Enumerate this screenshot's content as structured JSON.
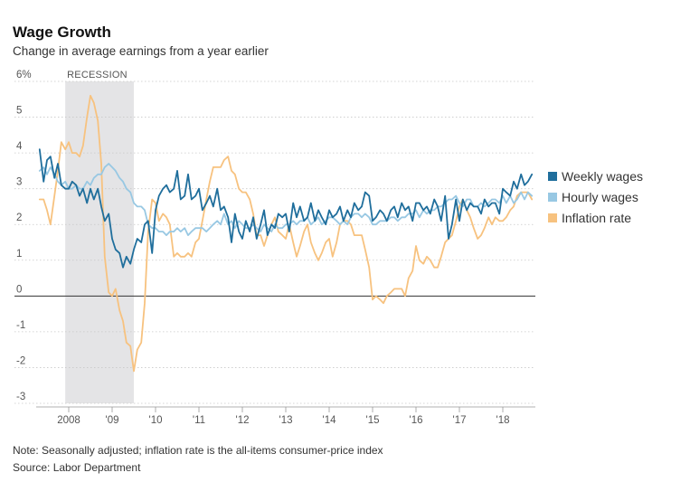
{
  "header": {
    "title": "Wage Growth",
    "subtitle": "Change in average earnings from a year earlier"
  },
  "footer": {
    "note": "Note: Seasonally adjusted; inflation rate is the all-items consumer-price index",
    "source": "Source: Labor Department"
  },
  "colors": {
    "weekly": "#1f6e9c",
    "hourly": "#98c8e3",
    "inflation": "#f7c27f",
    "recession": "#e4e4e6",
    "grid": "#c8c8c8",
    "zero": "#333333"
  },
  "chart_data": {
    "type": "line",
    "title": "Wage Growth",
    "subtitle": "Change in average earnings from a year earlier",
    "xlabel": "",
    "ylabel": "",
    "xlim": [
      2007.25,
      2018.75
    ],
    "ylim": [
      -3,
      6
    ],
    "y_ticks": [
      {
        "value": 6,
        "label": "6%"
      },
      {
        "value": 5,
        "label": "5"
      },
      {
        "value": 4,
        "label": "4"
      },
      {
        "value": 3,
        "label": "3"
      },
      {
        "value": 2,
        "label": "2"
      },
      {
        "value": 1,
        "label": "1"
      },
      {
        "value": 0,
        "label": "0"
      },
      {
        "value": -1,
        "label": "-1"
      },
      {
        "value": -2,
        "label": "-2"
      },
      {
        "value": -3,
        "label": "-3"
      }
    ],
    "x_ticks": [
      {
        "value": 2008,
        "label": "2008"
      },
      {
        "value": 2009,
        "label": "'09"
      },
      {
        "value": 2010,
        "label": "'10"
      },
      {
        "value": 2011,
        "label": "'11"
      },
      {
        "value": 2012,
        "label": "'12"
      },
      {
        "value": 2013,
        "label": "'13"
      },
      {
        "value": 2014,
        "label": "'14"
      },
      {
        "value": 2015,
        "label": "'15"
      },
      {
        "value": 2016,
        "label": "'16"
      },
      {
        "value": 2017,
        "label": "'17"
      },
      {
        "value": 2018,
        "label": "'18"
      }
    ],
    "grid": "horizontal",
    "legend_position": "right",
    "annotations": [
      {
        "label": "RECESSION",
        "x_start": 2007.92,
        "x_end": 2009.5
      }
    ],
    "series": [
      {
        "name": "Weekly wages",
        "color": "#1f6e9c",
        "x": [
          2007.33,
          2007.42,
          2007.5,
          2007.58,
          2007.67,
          2007.75,
          2007.83,
          2007.92,
          2008.0,
          2008.08,
          2008.17,
          2008.25,
          2008.33,
          2008.42,
          2008.5,
          2008.58,
          2008.67,
          2008.75,
          2008.83,
          2008.92,
          2009.0,
          2009.08,
          2009.17,
          2009.25,
          2009.33,
          2009.42,
          2009.5,
          2009.58,
          2009.67,
          2009.75,
          2009.83,
          2009.92,
          2010.0,
          2010.08,
          2010.17,
          2010.25,
          2010.33,
          2010.42,
          2010.5,
          2010.58,
          2010.67,
          2010.75,
          2010.83,
          2010.92,
          2011.0,
          2011.08,
          2011.17,
          2011.25,
          2011.33,
          2011.42,
          2011.5,
          2011.58,
          2011.67,
          2011.75,
          2011.83,
          2011.92,
          2012.0,
          2012.08,
          2012.17,
          2012.25,
          2012.33,
          2012.42,
          2012.5,
          2012.58,
          2012.67,
          2012.75,
          2012.83,
          2012.92,
          2013.0,
          2013.08,
          2013.17,
          2013.25,
          2013.33,
          2013.42,
          2013.5,
          2013.58,
          2013.67,
          2013.75,
          2013.83,
          2013.92,
          2014.0,
          2014.08,
          2014.17,
          2014.25,
          2014.33,
          2014.42,
          2014.5,
          2014.58,
          2014.67,
          2014.75,
          2014.83,
          2014.92,
          2015.0,
          2015.08,
          2015.17,
          2015.25,
          2015.33,
          2015.42,
          2015.5,
          2015.58,
          2015.67,
          2015.75,
          2015.83,
          2015.92,
          2016.0,
          2016.08,
          2016.17,
          2016.25,
          2016.33,
          2016.42,
          2016.5,
          2016.58,
          2016.67,
          2016.75,
          2016.83,
          2016.92,
          2017.0,
          2017.08,
          2017.17,
          2017.25,
          2017.33,
          2017.42,
          2017.5,
          2017.58,
          2017.67,
          2017.75,
          2017.83,
          2017.92,
          2018.0,
          2018.08,
          2018.17,
          2018.25,
          2018.33,
          2018.42,
          2018.5,
          2018.58,
          2018.67
        ],
        "values": [
          4.1,
          3.2,
          3.8,
          3.9,
          3.3,
          3.7,
          3.1,
          3.0,
          3.0,
          3.2,
          3.1,
          2.8,
          3.0,
          2.6,
          3.0,
          2.7,
          3.0,
          2.5,
          2.1,
          2.3,
          1.6,
          1.3,
          1.2,
          0.8,
          1.1,
          0.9,
          1.3,
          1.6,
          1.5,
          2.0,
          2.1,
          1.2,
          2.4,
          2.8,
          3.0,
          3.1,
          2.9,
          3.0,
          3.5,
          2.7,
          2.8,
          3.4,
          2.7,
          2.8,
          3.0,
          2.4,
          2.6,
          2.8,
          2.5,
          3.0,
          2.4,
          2.5,
          2.2,
          1.5,
          2.3,
          1.8,
          1.6,
          2.1,
          1.8,
          2.2,
          1.6,
          2.0,
          2.4,
          1.7,
          2.0,
          1.9,
          2.3,
          2.2,
          2.3,
          1.8,
          2.6,
          2.2,
          2.5,
          2.1,
          2.2,
          2.6,
          2.1,
          2.4,
          2.2,
          2.0,
          2.4,
          2.2,
          2.3,
          2.5,
          2.1,
          2.4,
          2.2,
          2.6,
          2.4,
          2.5,
          2.9,
          2.8,
          2.1,
          2.2,
          2.4,
          2.3,
          2.1,
          2.4,
          2.5,
          2.2,
          2.6,
          2.4,
          2.5,
          2.1,
          2.6,
          2.6,
          2.4,
          2.5,
          2.3,
          2.7,
          2.5,
          2.1,
          2.8,
          1.6,
          2.0,
          2.7,
          2.1,
          2.7,
          2.4,
          2.6,
          2.5,
          2.5,
          2.3,
          2.7,
          2.5,
          2.6,
          2.6,
          2.3,
          3.0,
          2.9,
          2.8,
          3.2,
          3.0,
          3.4,
          3.1,
          3.2,
          3.4
        ]
      },
      {
        "name": "Hourly wages",
        "color": "#98c8e3",
        "x": [
          2007.33,
          2007.42,
          2007.5,
          2007.58,
          2007.67,
          2007.75,
          2007.83,
          2007.92,
          2008.0,
          2008.08,
          2008.17,
          2008.25,
          2008.33,
          2008.42,
          2008.5,
          2008.58,
          2008.67,
          2008.75,
          2008.83,
          2008.92,
          2009.0,
          2009.08,
          2009.17,
          2009.25,
          2009.33,
          2009.42,
          2009.5,
          2009.58,
          2009.67,
          2009.75,
          2009.83,
          2009.92,
          2010.0,
          2010.08,
          2010.17,
          2010.25,
          2010.33,
          2010.42,
          2010.5,
          2010.58,
          2010.67,
          2010.75,
          2010.83,
          2010.92,
          2011.0,
          2011.08,
          2011.17,
          2011.25,
          2011.33,
          2011.42,
          2011.5,
          2011.58,
          2011.67,
          2011.75,
          2011.83,
          2011.92,
          2012.0,
          2012.08,
          2012.17,
          2012.25,
          2012.33,
          2012.42,
          2012.5,
          2012.58,
          2012.67,
          2012.75,
          2012.83,
          2012.92,
          2013.0,
          2013.08,
          2013.17,
          2013.25,
          2013.33,
          2013.42,
          2013.5,
          2013.58,
          2013.67,
          2013.75,
          2013.83,
          2013.92,
          2014.0,
          2014.08,
          2014.17,
          2014.25,
          2014.33,
          2014.42,
          2014.5,
          2014.58,
          2014.67,
          2014.75,
          2014.83,
          2014.92,
          2015.0,
          2015.08,
          2015.17,
          2015.25,
          2015.33,
          2015.42,
          2015.5,
          2015.58,
          2015.67,
          2015.75,
          2015.83,
          2015.92,
          2016.0,
          2016.08,
          2016.17,
          2016.25,
          2016.33,
          2016.42,
          2016.5,
          2016.58,
          2016.67,
          2016.75,
          2016.83,
          2016.92,
          2017.0,
          2017.08,
          2017.17,
          2017.25,
          2017.33,
          2017.42,
          2017.5,
          2017.58,
          2017.67,
          2017.75,
          2017.83,
          2017.92,
          2018.0,
          2018.08,
          2018.17,
          2018.25,
          2018.33,
          2018.42,
          2018.5,
          2018.58,
          2018.67
        ],
        "values": [
          3.5,
          3.6,
          3.4,
          3.6,
          3.4,
          3.2,
          3.1,
          3.2,
          3.0,
          3.0,
          3.1,
          3.0,
          3.0,
          3.2,
          3.1,
          3.3,
          3.4,
          3.4,
          3.6,
          3.7,
          3.6,
          3.5,
          3.3,
          3.2,
          3.0,
          2.9,
          2.6,
          2.5,
          2.5,
          2.4,
          2.0,
          1.9,
          1.9,
          1.8,
          1.8,
          1.7,
          1.8,
          1.8,
          1.9,
          1.8,
          1.9,
          1.7,
          1.8,
          1.9,
          1.9,
          1.9,
          1.8,
          1.9,
          2.0,
          2.1,
          2.0,
          2.3,
          2.0,
          2.1,
          1.9,
          2.1,
          2.0,
          1.9,
          1.9,
          2.0,
          1.9,
          1.8,
          2.0,
          1.9,
          1.8,
          2.0,
          1.9,
          1.9,
          2.0,
          2.0,
          2.1,
          2.0,
          2.1,
          2.1,
          2.2,
          2.0,
          2.1,
          2.2,
          2.0,
          2.1,
          2.2,
          2.2,
          2.1,
          2.0,
          2.1,
          2.0,
          2.2,
          2.3,
          2.3,
          2.2,
          2.3,
          2.2,
          2.0,
          2.0,
          2.1,
          2.1,
          2.1,
          2.2,
          2.2,
          2.1,
          2.2,
          2.2,
          2.3,
          2.3,
          2.4,
          2.2,
          2.4,
          2.3,
          2.4,
          2.4,
          2.5,
          2.5,
          2.6,
          2.7,
          2.7,
          2.8,
          2.6,
          2.5,
          2.7,
          2.7,
          2.5,
          2.5,
          2.6,
          2.5,
          2.6,
          2.7,
          2.7,
          2.6,
          2.8,
          2.6,
          2.8,
          2.6,
          2.7,
          2.9,
          2.7,
          2.9,
          2.8
        ]
      },
      {
        "name": "Inflation rate",
        "color": "#f7c27f",
        "x": [
          2007.33,
          2007.42,
          2007.5,
          2007.58,
          2007.67,
          2007.75,
          2007.83,
          2007.92,
          2008.0,
          2008.08,
          2008.17,
          2008.25,
          2008.33,
          2008.42,
          2008.5,
          2008.58,
          2008.67,
          2008.75,
          2008.83,
          2008.92,
          2009.0,
          2009.08,
          2009.17,
          2009.25,
          2009.33,
          2009.42,
          2009.5,
          2009.58,
          2009.67,
          2009.75,
          2009.83,
          2009.92,
          2010.0,
          2010.08,
          2010.17,
          2010.25,
          2010.33,
          2010.42,
          2010.5,
          2010.58,
          2010.67,
          2010.75,
          2010.83,
          2010.92,
          2011.0,
          2011.08,
          2011.17,
          2011.25,
          2011.33,
          2011.42,
          2011.5,
          2011.58,
          2011.67,
          2011.75,
          2011.83,
          2011.92,
          2012.0,
          2012.08,
          2012.17,
          2012.25,
          2012.33,
          2012.42,
          2012.5,
          2012.58,
          2012.67,
          2012.75,
          2012.83,
          2012.92,
          2013.0,
          2013.08,
          2013.17,
          2013.25,
          2013.33,
          2013.42,
          2013.5,
          2013.58,
          2013.67,
          2013.75,
          2013.83,
          2013.92,
          2014.0,
          2014.08,
          2014.17,
          2014.25,
          2014.33,
          2014.42,
          2014.5,
          2014.58,
          2014.67,
          2014.75,
          2014.83,
          2014.92,
          2015.0,
          2015.08,
          2015.17,
          2015.25,
          2015.33,
          2015.42,
          2015.5,
          2015.58,
          2015.67,
          2015.75,
          2015.83,
          2015.92,
          2016.0,
          2016.08,
          2016.17,
          2016.25,
          2016.33,
          2016.42,
          2016.5,
          2016.58,
          2016.67,
          2016.75,
          2016.83,
          2016.92,
          2017.0,
          2017.08,
          2017.17,
          2017.25,
          2017.33,
          2017.42,
          2017.5,
          2017.58,
          2017.67,
          2017.75,
          2017.83,
          2017.92,
          2018.0,
          2018.08,
          2018.17,
          2018.25,
          2018.33,
          2018.42,
          2018.5,
          2018.58,
          2018.67
        ],
        "values": [
          2.7,
          2.7,
          2.4,
          2.0,
          2.8,
          3.5,
          4.3,
          4.1,
          4.3,
          4.0,
          4.0,
          3.9,
          4.2,
          5.0,
          5.6,
          5.4,
          4.9,
          3.7,
          1.1,
          0.1,
          0.0,
          0.2,
          -0.4,
          -0.7,
          -1.3,
          -1.4,
          -2.1,
          -1.5,
          -1.3,
          -0.2,
          1.8,
          2.7,
          2.6,
          2.1,
          2.3,
          2.2,
          2.0,
          1.1,
          1.2,
          1.1,
          1.1,
          1.2,
          1.1,
          1.5,
          1.6,
          2.1,
          2.7,
          3.2,
          3.6,
          3.6,
          3.6,
          3.8,
          3.9,
          3.5,
          3.4,
          3.0,
          2.9,
          2.9,
          2.7,
          2.3,
          1.7,
          1.7,
          1.4,
          1.7,
          2.0,
          2.2,
          1.8,
          1.7,
          1.6,
          2.0,
          1.5,
          1.1,
          1.4,
          1.8,
          2.0,
          1.5,
          1.2,
          1.0,
          1.2,
          1.5,
          1.6,
          1.1,
          1.5,
          2.0,
          2.1,
          2.1,
          2.0,
          1.7,
          1.7,
          1.7,
          1.3,
          0.8,
          -0.1,
          0.0,
          -0.1,
          -0.2,
          0.0,
          0.1,
          0.2,
          0.2,
          0.2,
          0.0,
          0.5,
          0.7,
          1.4,
          1.0,
          0.9,
          1.1,
          1.0,
          0.8,
          0.8,
          1.1,
          1.5,
          1.6,
          1.7,
          2.1,
          2.5,
          2.7,
          2.4,
          2.2,
          1.9,
          1.6,
          1.7,
          1.9,
          2.2,
          2.0,
          2.2,
          2.1,
          2.1,
          2.2,
          2.4,
          2.5,
          2.8,
          2.9,
          2.9,
          2.9,
          2.7
        ]
      }
    ]
  }
}
